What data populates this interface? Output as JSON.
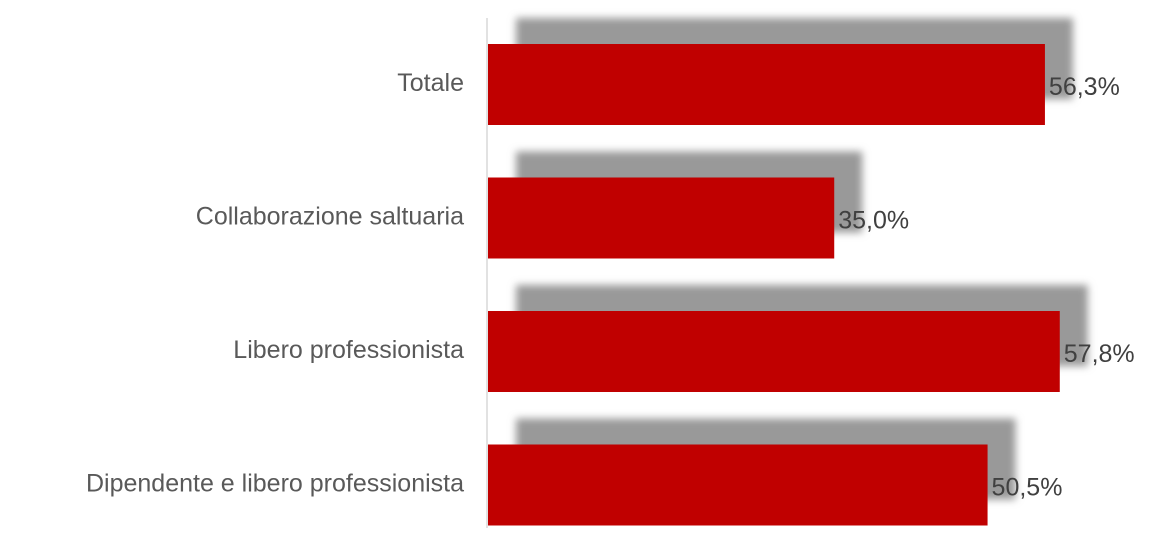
{
  "chart_data": {
    "type": "bar",
    "orientation": "horizontal",
    "categories": [
      "Totale",
      "Collaborazione saltuaria",
      "Libero professionista",
      "Dipendente e libero professionista"
    ],
    "values": [
      56.3,
      35.0,
      57.8,
      50.5
    ],
    "value_labels": [
      "56,3%",
      "35,0%",
      "57,8%",
      "50,5%"
    ],
    "xlim": [
      0,
      65
    ],
    "title": "",
    "xlabel": "",
    "ylabel": "",
    "grid": false,
    "legend": "none",
    "colors": {
      "bar": "#c00000",
      "shadow": "#999999",
      "axis": "#d9d9d9"
    }
  }
}
